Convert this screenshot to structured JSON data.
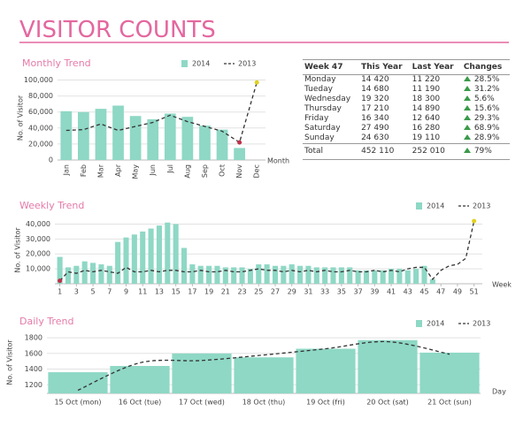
{
  "header": {
    "title": "VISITOR COUNTS"
  },
  "chart_data": [
    {
      "type": "combo",
      "title": "Monthly Trend",
      "y_label": "No. of Visitor",
      "x_label": "Month",
      "categories": [
        "Jan",
        "Feb",
        "Mar",
        "Apr",
        "May",
        "Jun",
        "Jul",
        "Aug",
        "Sep",
        "Oct",
        "Nov",
        "Dec"
      ],
      "series": [
        {
          "name": "2014",
          "type": "bar",
          "color": "#8ed8c5",
          "values": [
            61000,
            60000,
            64000,
            68000,
            55000,
            51000,
            58000,
            54000,
            43000,
            38000,
            15000,
            null
          ]
        },
        {
          "name": "2013",
          "type": "line",
          "color": "#333333",
          "values": [
            37000,
            38000,
            45000,
            37000,
            42000,
            47000,
            56000,
            48000,
            42000,
            36000,
            22000,
            97000
          ]
        }
      ],
      "ylim": [
        0,
        105000
      ],
      "yticks": [
        0,
        {
          "value": 20000,
          "label": "20,000"
        },
        {
          "value": 40000,
          "label": "40,000"
        },
        {
          "value": 60000,
          "label": "60,000"
        },
        {
          "value": 80000,
          "label": "80,000"
        },
        {
          "value": 100000,
          "label": "100,000"
        }
      ],
      "grid": true,
      "legend": "top-right",
      "rotate_x_labels": true,
      "markers": true,
      "smooth": false
    },
    {
      "type": "combo",
      "title": "Weekly Trend",
      "y_label": "No. of Visitor",
      "x_label": "Week",
      "x": [
        1,
        2,
        3,
        4,
        5,
        6,
        7,
        8,
        9,
        10,
        11,
        12,
        13,
        14,
        15,
        16,
        17,
        18,
        19,
        20,
        21,
        22,
        23,
        24,
        25,
        26,
        27,
        28,
        29,
        30,
        31,
        32,
        33,
        34,
        35,
        36,
        37,
        38,
        39,
        40,
        41,
        42,
        43,
        44,
        45,
        46,
        47,
        48,
        49,
        50,
        51
      ],
      "series": [
        {
          "name": "2014",
          "type": "bar",
          "color": "#8ed8c5",
          "values": [
            18000,
            11000,
            12000,
            15000,
            14000,
            13000,
            12000,
            28000,
            31000,
            33000,
            35000,
            37000,
            39000,
            41000,
            40000,
            24000,
            13000,
            12000,
            12000,
            12000,
            11000,
            11000,
            11000,
            10000,
            13000,
            13000,
            12000,
            12000,
            13000,
            12000,
            12000,
            11000,
            11000,
            11000,
            11000,
            11000,
            9000,
            9000,
            9000,
            9000,
            10000,
            10000,
            9000,
            10000,
            12000,
            3000,
            null,
            null,
            null,
            null,
            null
          ]
        },
        {
          "name": "2013",
          "type": "line",
          "color": "#333333",
          "values": [
            2000,
            8000,
            7000,
            9000,
            8000,
            9000,
            8000,
            7000,
            11000,
            8000,
            8000,
            9000,
            8000,
            9000,
            9000,
            8000,
            8000,
            9000,
            8000,
            8000,
            9000,
            8000,
            8000,
            9000,
            10000,
            9000,
            9000,
            8000,
            9000,
            8000,
            9000,
            8000,
            9000,
            8000,
            8000,
            9000,
            8000,
            8000,
            9000,
            8000,
            9000,
            8000,
            10000,
            11000,
            11000,
            3000,
            9000,
            12000,
            13000,
            17000,
            42000
          ]
        }
      ],
      "xlim": [
        0.4,
        52
      ],
      "xticks": [
        1,
        3,
        5,
        7,
        9,
        11,
        13,
        15,
        17,
        19,
        21,
        23,
        25,
        27,
        29,
        31,
        33,
        35,
        37,
        39,
        41,
        43,
        45,
        47,
        49,
        51
      ],
      "ylim": [
        0,
        45000
      ],
      "yticks": [
        {
          "value": 10000,
          "label": "10,000"
        },
        {
          "value": 20000,
          "label": "20,000"
        },
        {
          "value": 30000,
          "label": "30,000"
        },
        {
          "value": 40000,
          "label": "40,000"
        }
      ],
      "grid": true,
      "legend": "top-right",
      "rotate_x_labels": false,
      "markers": true,
      "smooth": false
    },
    {
      "type": "combo",
      "title": "Daily Trend",
      "y_label": "No. of Visitor",
      "x_label": "Day",
      "categories": [
        "15 Oct (mon)",
        "16 Oct (tue)",
        "17 Oct (wed)",
        "18 Oct (thu)",
        "19 Oct (fri)",
        "20 Oct (sat)",
        "21 Oct (sun)"
      ],
      "series": [
        {
          "name": "2014",
          "type": "bar",
          "color": "#8ed8c5",
          "values": [
            1360,
            1440,
            1600,
            1550,
            1660,
            1770,
            1610
          ]
        },
        {
          "name": "2013",
          "type": "line",
          "color": "#333333",
          "values": [
            1130,
            1480,
            1510,
            1580,
            1660,
            1750,
            1590
          ]
        }
      ],
      "ylim": [
        1090,
        1880
      ],
      "yticks": [
        1200,
        1400,
        1600,
        1800
      ],
      "grid": true,
      "legend": "top-right",
      "rotate_x_labels": false,
      "markers": false,
      "smooth": true
    }
  ],
  "table": {
    "header": [
      "Week 47",
      "This Year",
      "Last Year",
      "Changes"
    ],
    "rows": [
      [
        "Monday",
        "14 420",
        "11 220",
        "28.5%"
      ],
      [
        "Tueday",
        "14 680",
        "11 190",
        "31.2%"
      ],
      [
        "Wednesday",
        "19 320",
        "18 300",
        "5.6%"
      ],
      [
        "Thursday",
        "17 210",
        "14 890",
        "15.6%"
      ],
      [
        "Friday",
        "16 340",
        "12 640",
        "29.3%"
      ],
      [
        "Saturday",
        "27 490",
        "16 280",
        "68.9%"
      ],
      [
        "Sunday",
        "24 630",
        "19 110",
        "28.9%"
      ]
    ],
    "total": [
      "Total",
      "452 110",
      "252 010",
      "79%"
    ]
  }
}
